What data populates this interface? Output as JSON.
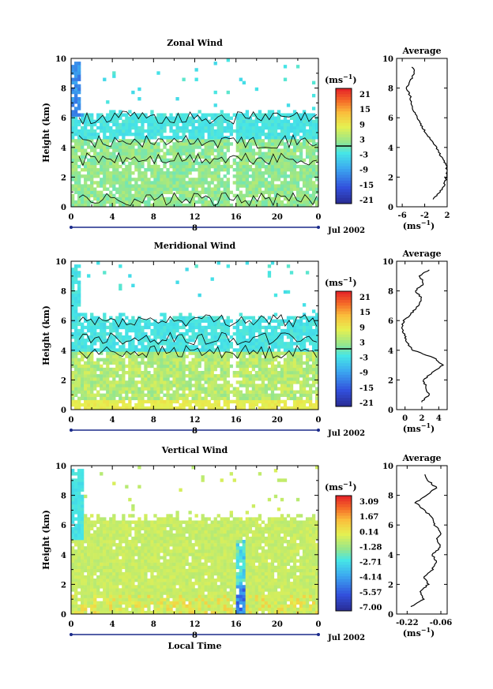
{
  "unit_label": "(ms",
  "unit_exp": "−1",
  "date_label": "Jul 2002",
  "x_axis_label": "Local Time",
  "day_marker": "8",
  "x_ticks": [
    "0",
    "4",
    "8",
    "12",
    "16",
    "20",
    "0"
  ],
  "height_label": "Height (km)",
  "avg_title": "Average",
  "panels": [
    {
      "id": "zonal",
      "title": "Zonal Wind",
      "colorbar_ticks": [
        "21",
        "15",
        "9",
        "3",
        "-3",
        "-9",
        "-15",
        "-21"
      ],
      "avg_x_ticks": [
        "-6",
        "-2",
        "2"
      ],
      "avg_xlim": [
        -7,
        2
      ]
    },
    {
      "id": "meridional",
      "title": "Meridional Wind",
      "colorbar_ticks": [
        "21",
        "15",
        "9",
        "3",
        "-3",
        "-9",
        "-15",
        "-21"
      ],
      "avg_x_ticks": [
        "0",
        "2",
        "4"
      ],
      "avg_xlim": [
        -1,
        5
      ]
    },
    {
      "id": "vertical",
      "title": "Vertical Wind",
      "colorbar_ticks": [
        "3.09",
        "1.67",
        "0.14",
        "-1.28",
        "-2.71",
        "-4.14",
        "-5.57",
        "-7.00"
      ],
      "avg_x_ticks": [
        "-0.22",
        "-0.06"
      ],
      "avg_xlim": [
        -0.27,
        -0.03
      ]
    }
  ],
  "y_ticks": [
    "0",
    "2",
    "4",
    "6",
    "8",
    "10"
  ],
  "chart_data": [
    {
      "type": "heatmap",
      "title": "Zonal Wind",
      "xlabel": "",
      "ylabel": "Height (km)",
      "x_tick_labels": [
        "0",
        "4",
        "8",
        "12",
        "16",
        "20",
        "0"
      ],
      "ylim": [
        0,
        10
      ],
      "colorbar_unit": "(ms−1)",
      "colorbar_ticks": [
        21,
        15,
        9,
        3,
        -3,
        -9,
        -15,
        -21
      ],
      "average_profile": {
        "title": "Average",
        "xlabel": "(ms−1)",
        "xlim": [
          -7,
          2
        ],
        "x_ticks": [
          -6,
          -2,
          2
        ],
        "height": [
          0.5,
          1,
          1.5,
          2,
          2.5,
          3,
          3.5,
          4,
          4.5,
          5,
          5.5,
          6,
          6.5,
          7,
          7.5,
          8,
          8.5,
          9,
          9.5
        ],
        "value": [
          -0.5,
          0.8,
          1.5,
          1.9,
          2.0,
          1.6,
          0.8,
          0.0,
          -0.8,
          -1.8,
          -2.6,
          -3.3,
          -4.0,
          -4.3,
          -4.6,
          -5.2,
          -4.5,
          -3.8,
          -4.2
        ]
      }
    },
    {
      "type": "heatmap",
      "title": "Meridional Wind",
      "xlabel": "",
      "ylabel": "Height (km)",
      "x_tick_labels": [
        "0",
        "4",
        "8",
        "12",
        "16",
        "20",
        "0"
      ],
      "ylim": [
        0,
        10
      ],
      "colorbar_unit": "(ms−1)",
      "colorbar_ticks": [
        21,
        15,
        9,
        3,
        -3,
        -9,
        -15,
        -21
      ],
      "average_profile": {
        "title": "Average",
        "xlabel": "(ms−1)",
        "xlim": [
          -1,
          5
        ],
        "x_ticks": [
          0,
          2,
          4
        ],
        "height": [
          0.5,
          1,
          1.5,
          2,
          2.5,
          3,
          3.5,
          4,
          4.5,
          5,
          5.5,
          6,
          6.5,
          7,
          7.5,
          8,
          8.5,
          9,
          9.5
        ],
        "value": [
          2.0,
          2.8,
          2.5,
          2.2,
          3.2,
          4.5,
          3.4,
          1.0,
          0.2,
          0.0,
          -0.4,
          -0.1,
          0.8,
          1.5,
          2.0,
          1.2,
          2.2,
          1.8,
          3.0
        ]
      }
    },
    {
      "type": "heatmap",
      "title": "Vertical Wind",
      "xlabel": "Local Time",
      "ylabel": "Height (km)",
      "x_tick_labels": [
        "0",
        "4",
        "8",
        "12",
        "16",
        "20",
        "0"
      ],
      "ylim": [
        0,
        10
      ],
      "colorbar_unit": "(ms−1)",
      "colorbar_ticks": [
        3.09,
        1.67,
        0.14,
        -1.28,
        -2.71,
        -4.14,
        -5.57,
        -7.0
      ],
      "average_profile": {
        "title": "Average",
        "xlabel": "(ms−1)",
        "xlim": [
          -0.27,
          -0.03
        ],
        "x_ticks": [
          -0.22,
          -0.06
        ],
        "height": [
          0.5,
          1,
          1.5,
          2,
          2.5,
          3,
          3.5,
          4,
          4.5,
          5,
          5.5,
          6,
          6.5,
          7,
          7.5,
          8,
          8.5,
          9,
          9.5
        ],
        "value": [
          -0.2,
          -0.14,
          -0.16,
          -0.12,
          -0.14,
          -0.1,
          -0.08,
          -0.1,
          -0.06,
          -0.08,
          -0.06,
          -0.09,
          -0.1,
          -0.14,
          -0.18,
          -0.13,
          -0.08,
          -0.12,
          -0.14
        ]
      }
    }
  ]
}
